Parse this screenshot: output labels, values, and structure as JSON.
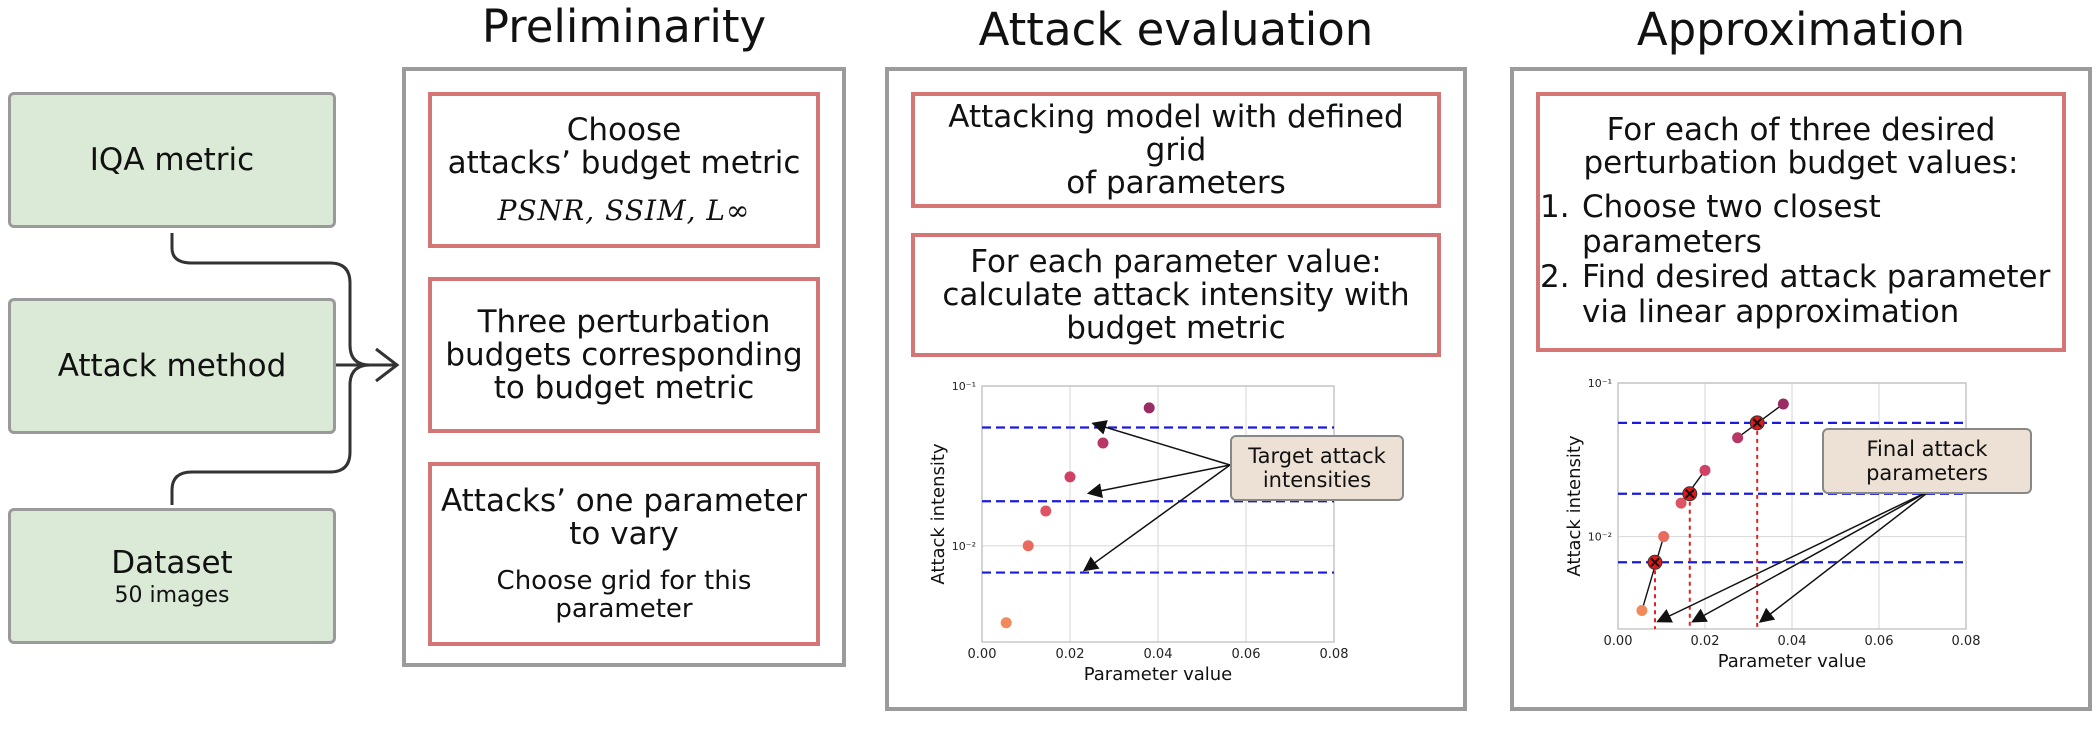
{
  "inputs": {
    "iqa": "IQA metric",
    "attack": "Attack method",
    "dataset": "Dataset",
    "dataset_sub": "50 images"
  },
  "preliminarity": {
    "title": "Preliminarity",
    "box1_line1": "Choose",
    "box1_line2": "attacks’ budget metric",
    "box1_math": "PSNR, SSIM, L∞",
    "box2_line1": "Three perturbation",
    "box2_line2": "budgets corresponding",
    "box2_line3": "to budget metric",
    "box3_line1": "Attacks’ one parameter",
    "box3_line2": "to vary",
    "box3_sub1": "Choose grid for this",
    "box3_sub2": "parameter"
  },
  "evaluation": {
    "title": "Attack evaluation",
    "box1_line1": "Attacking model with defined grid",
    "box1_line2": "of parameters",
    "box2_line1": "For each parameter value:",
    "box2_line2": "calculate attack intensity with",
    "box2_line3": "budget metric",
    "callout_line1": "Target attack",
    "callout_line2": "intensities"
  },
  "approximation": {
    "title": "Approximation",
    "intro_line1": "For each of three desired",
    "intro_line2": "perturbation budget values:",
    "step1_num": "1.",
    "step1": "Choose two closest parameters",
    "step2_num": "2.",
    "step2_line1": "Find desired attack parameter",
    "step2_line2": "via linear approximation",
    "callout_line1": "Final attack",
    "callout_line2": "parameters"
  },
  "chart_data": [
    {
      "type": "scatter",
      "xlabel": "Parameter value",
      "ylabel": "Attack intensity",
      "x_ticks": [
        "0.00",
        "0.02",
        "0.04",
        "0.06",
        "0.08"
      ],
      "y_ticks": [
        "10⁻¹",
        "10⁻²"
      ],
      "xlim": [
        0,
        0.08
      ],
      "ylim": [
        0.0025,
        0.1
      ],
      "y_scale": "log",
      "grid": true,
      "points": [
        {
          "x": 0.0055,
          "y": 0.0033
        },
        {
          "x": 0.0105,
          "y": 0.01
        },
        {
          "x": 0.0145,
          "y": 0.0165
        },
        {
          "x": 0.02,
          "y": 0.027
        },
        {
          "x": 0.0275,
          "y": 0.044
        },
        {
          "x": 0.038,
          "y": 0.073
        }
      ],
      "target_levels": [
        0.055,
        0.019,
        0.0068
      ],
      "point_colors": [
        "#f08a5d",
        "#e96b5f",
        "#de5462",
        "#cf4264",
        "#b93765",
        "#9b2b63"
      ]
    },
    {
      "type": "scatter",
      "xlabel": "Parameter value",
      "ylabel": "Attack intensity",
      "x_ticks": [
        "0.00",
        "0.02",
        "0.04",
        "0.06",
        "0.08"
      ],
      "y_ticks": [
        "10⁻¹",
        "10⁻²"
      ],
      "xlim": [
        0,
        0.08
      ],
      "ylim": [
        0.0025,
        0.1
      ],
      "y_scale": "log",
      "grid": true,
      "points": [
        {
          "x": 0.0055,
          "y": 0.0033
        },
        {
          "x": 0.0105,
          "y": 0.01
        },
        {
          "x": 0.0145,
          "y": 0.0165
        },
        {
          "x": 0.02,
          "y": 0.027
        },
        {
          "x": 0.0275,
          "y": 0.044
        },
        {
          "x": 0.038,
          "y": 0.073
        }
      ],
      "target_levels": [
        0.055,
        0.019,
        0.0068
      ],
      "crossings": [
        {
          "x": 0.0085,
          "y": 0.0068
        },
        {
          "x": 0.0165,
          "y": 0.019
        },
        {
          "x": 0.032,
          "y": 0.055
        }
      ],
      "point_colors": [
        "#f08a5d",
        "#e96b5f",
        "#de5462",
        "#cf4264",
        "#b93765",
        "#9b2b63"
      ]
    }
  ]
}
